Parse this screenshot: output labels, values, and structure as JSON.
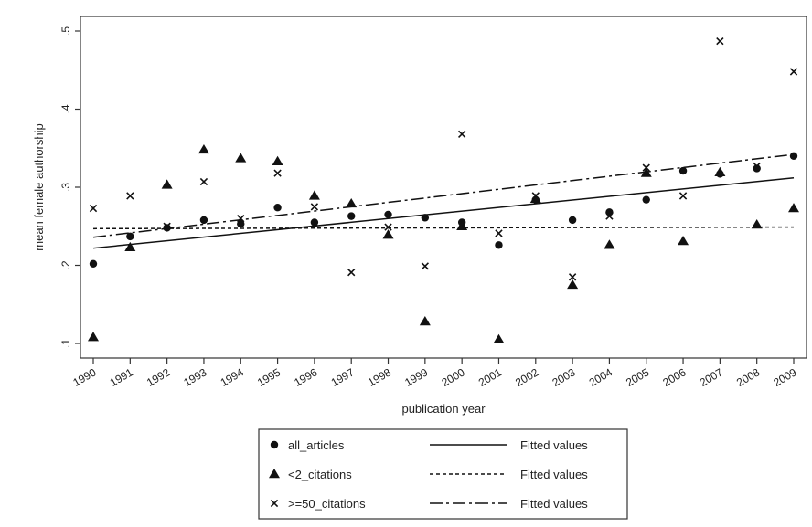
{
  "chart_data": {
    "type": "scatter",
    "title": "",
    "xlabel": "publication year",
    "ylabel": "mean female authorship",
    "xlim": [
      1990,
      2009
    ],
    "ylim": [
      0.1,
      0.5
    ],
    "x_ticks": [
      "1990",
      "1991",
      "1992",
      "1993",
      "1994",
      "1995",
      "1996",
      "1997",
      "1998",
      "1999",
      "2000",
      "2001",
      "2002",
      "2003",
      "2004",
      "2005",
      "2006",
      "2007",
      "2008",
      "2009"
    ],
    "y_ticks": [
      {
        "value": 0.1,
        "label": ".1"
      },
      {
        "value": 0.2,
        "label": ".2"
      },
      {
        "value": 0.3,
        "label": ".3"
      },
      {
        "value": 0.4,
        "label": ".4"
      },
      {
        "value": 0.5,
        "label": ".5"
      }
    ],
    "grid": false,
    "legend_position": "bottom",
    "x": [
      1990,
      1991,
      1992,
      1993,
      1994,
      1995,
      1996,
      1997,
      1998,
      1999,
      2000,
      2001,
      2002,
      2003,
      2004,
      2005,
      2006,
      2007,
      2008,
      2009
    ],
    "series": [
      {
        "name": "all_articles",
        "marker": "circle",
        "values": [
          0.202,
          0.237,
          0.248,
          0.258,
          0.253,
          0.274,
          0.255,
          0.263,
          0.265,
          0.261,
          0.255,
          0.226,
          0.284,
          0.258,
          0.268,
          0.284,
          0.321,
          0.317,
          0.324,
          0.34
        ]
      },
      {
        "name": "<2_citations",
        "marker": "triangle",
        "values": [
          0.108,
          0.223,
          0.303,
          0.348,
          0.337,
          0.333,
          0.289,
          0.279,
          0.239,
          0.128,
          0.25,
          0.105,
          0.285,
          0.175,
          0.226,
          0.318,
          0.231,
          0.319,
          0.252,
          0.273
        ]
      },
      {
        "name": ">=50_citations",
        "marker": "x",
        "values": [
          0.273,
          0.289,
          0.25,
          0.307,
          0.26,
          0.318,
          0.275,
          0.191,
          0.249,
          0.199,
          0.368,
          0.241,
          0.289,
          0.185,
          0.263,
          0.325,
          0.289,
          0.487,
          0.327,
          0.448
        ]
      }
    ],
    "fitted_lines": [
      {
        "name": "Fitted values",
        "style": "solid",
        "y_start": 0.222,
        "y_end": 0.312
      },
      {
        "name": "Fitted values",
        "style": "dashed",
        "y_start": 0.247,
        "y_end": 0.249
      },
      {
        "name": "Fitted values",
        "style": "dashdot",
        "y_start": 0.236,
        "y_end": 0.342
      }
    ]
  }
}
